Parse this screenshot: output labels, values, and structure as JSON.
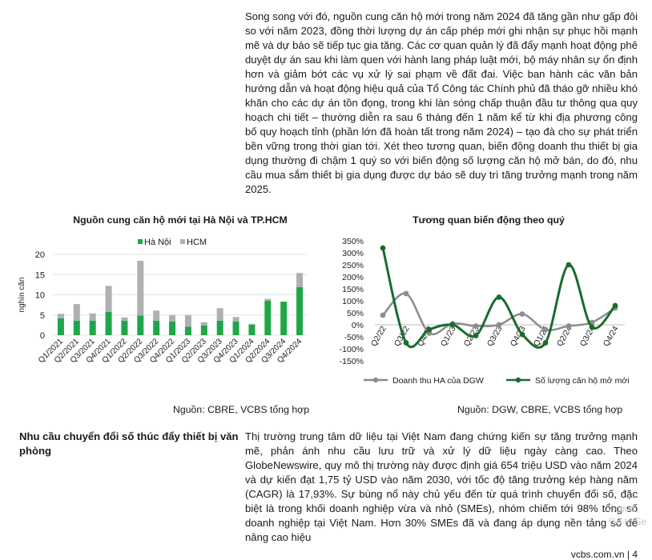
{
  "paragraphs": {
    "intro": "Song song với đó, nguồn cung căn hộ mới trong năm 2024 đã tăng gần như gấp đôi so với năm 2023, đồng thời lượng dự án cấp phép mới ghi nhận sự phục hồi mạnh mẽ và dự báo sẽ tiếp tục gia tăng. Các cơ quan quản lý đã đẩy mạnh hoạt động phê duyệt dự án sau khi làm quen với hành lang pháp luật mới, bộ máy nhân sự ổn định hơn và giảm bớt các vụ xử lý sai phạm về đất đai. Việc ban hành các văn bản hướng dẫn và hoạt động hiệu quả của Tổ Công tác Chính phủ đã tháo gỡ nhiều khó khăn cho các dự án tồn đọng, trong khi làn sóng chấp thuận đầu tư thông qua quy hoạch chi tiết – thường diễn ra sau 6 tháng đến 1 năm kể từ khi địa phương công bố quy hoạch tỉnh (phần lớn đã hoàn tất trong năm 2024) – tạo đà cho sự phát triển bền vững trong thời gian tới. Xét theo tương quan, biến động doanh thu thiết bị gia dụng thường đi chậm 1 quý so với biến động số lượng căn hộ mở bán, do đó, nhu cầu mua sắm thiết bị gia dụng được dự báo sẽ duy trì tăng trưởng mạnh trong năm 2025.",
    "section_heading": "Nhu cầu chuyển đổi số thúc đẩy thiết bị văn phòng",
    "section_body": "Thị trường trung tâm dữ liệu tại Việt Nam đang chứng kiến sự tăng trưởng mạnh mẽ, phản ánh nhu cầu lưu trữ và xử lý dữ liệu ngày càng cao. Theo GlobeNewswire, quy mô thị trường này được định giá 654 triệu USD vào năm 2024 và dự kiến đạt 1,75 tỷ USD vào năm 2030, với tốc độ tăng trưởng kép hàng năm (CAGR) là 17,93%. Sự bùng nổ này chủ yếu đến từ quá trình chuyển đổi số, đặc biệt là trong khối doanh nghiệp vừa và nhỏ (SMEs), nhóm chiếm tới 98% tổng số doanh nghiệp tại Việt Nam. Hơn 30% SMEs đã và đang áp dụng nền tảng số để nâng cao hiệu"
  },
  "chart_data": [
    {
      "type": "bar",
      "stacked": true,
      "title": "Nguồn cung căn hộ mới tại Hà Nội và TP.HCM",
      "ylabel": "nghìn căn",
      "ylim": [
        0,
        20
      ],
      "yticks": [
        0,
        5,
        10,
        15,
        20
      ],
      "grid": true,
      "legend_position": "top",
      "categories": [
        "Q1/2021",
        "Q2/2021",
        "Q3/2021",
        "Q4/2021",
        "Q1/2022",
        "Q2/2022",
        "Q3/2022",
        "Q4/2022",
        "Q1/2023",
        "Q2/2023",
        "Q3/2023",
        "Q4/2023",
        "Q1/2024",
        "Q2/2024",
        "Q3/2024",
        "Q4/2024"
      ],
      "series": [
        {
          "name": "Hà Nội",
          "color": "#1fa64a",
          "values": [
            4.2,
            3.6,
            3.6,
            5.8,
            3.6,
            4.9,
            3.6,
            3.4,
            2.1,
            2.4,
            3.6,
            3.4,
            2.6,
            8.5,
            8.3,
            11.9
          ]
        },
        {
          "name": "HCM",
          "color": "#b0b0b0",
          "values": [
            1.1,
            4.1,
            1.8,
            6.4,
            0.8,
            13.5,
            2.5,
            1.6,
            2.9,
            0.8,
            3.1,
            1.1,
            0.2,
            0.5,
            0.0,
            3.5
          ]
        }
      ],
      "source": "Nguồn: CBRE, VCBS tổng hợp"
    },
    {
      "type": "line",
      "title": "Tương quan biến động theo quý",
      "ylim": [
        -150,
        350
      ],
      "yticks": [
        -150,
        -100,
        -50,
        0,
        50,
        100,
        150,
        200,
        250,
        300,
        350
      ],
      "ytick_labels": [
        "-150%",
        "-100%",
        "-50%",
        "0%",
        "50%",
        "100%",
        "150%",
        "200%",
        "250%",
        "300%",
        "350%"
      ],
      "x": [
        "Q2/22",
        "Q3/22",
        "Q4/22",
        "Q1/23",
        "Q2/23",
        "Q3/23",
        "Q4/23",
        "Q1/24",
        "Q2/24",
        "Q3/24",
        "Q4/24"
      ],
      "xtick_labels": [
        "Q2/22",
        "Q3/22",
        "Q4/22",
        "Q1/23",
        "Q2/23",
        "Q3/23",
        "Q4/23",
        "Q1/24",
        "Q2/24",
        "Q3/24",
        "Q4/24"
      ],
      "grid": false,
      "legend_position": "bottom",
      "series": [
        {
          "name": "Doanh thu HA của DGW",
          "color": "#8c8c8c",
          "values": [
            40,
            130,
            -35,
            5,
            -5,
            0,
            45,
            -20,
            -5,
            10,
            70
          ]
        },
        {
          "name": "Số lượng căn hộ mở mới",
          "color": "#1a6b2c",
          "values": [
            320,
            -75,
            -20,
            0,
            -45,
            115,
            -40,
            -75,
            250,
            -10,
            80
          ]
        }
      ],
      "source": "Nguồn: DGW, CBRE, VCBS tổng hợp"
    }
  ],
  "footer": "vcbs.com.vn | 4",
  "watermark": [
    "Activa",
    "Go to Se"
  ]
}
